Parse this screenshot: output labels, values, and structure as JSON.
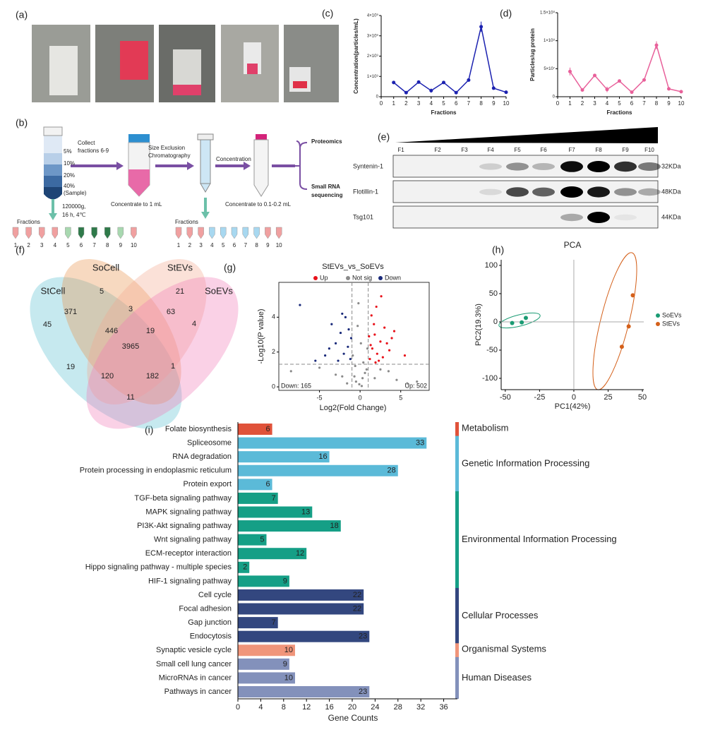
{
  "panel_labels": [
    "(a)",
    "(b)",
    "(c)",
    "(d)",
    "(e)",
    "(f)",
    "(g)",
    "(h)",
    "(i)"
  ],
  "schematic": {
    "gradient": [
      "5%",
      "10%",
      "20%",
      "40%",
      "(Sample)"
    ],
    "centrifuge": [
      "120000g,",
      "16 h, 4℃"
    ],
    "step1": [
      "Collect",
      "fractions 6-9"
    ],
    "step2": [
      "Size Exclusion",
      "Chromatography"
    ],
    "step3": "Concentration",
    "proteomics": "Proteomics",
    "small_rna": [
      "Small RNA",
      "sequencing"
    ],
    "concentrate1": "Concentrate to 1 mL",
    "concentrate2": "Concentrate to 0.1-0.2 mL",
    "fractions_label": "Fractions",
    "fraction_numbers": [
      "1",
      "2",
      "3",
      "4",
      "5",
      "6",
      "7",
      "8",
      "9",
      "10"
    ]
  },
  "blot": {
    "lanes": [
      "F1",
      "F2",
      "F3",
      "F4",
      "F5",
      "F6",
      "F7",
      "F8",
      "F9",
      "F10"
    ],
    "rows": [
      {
        "protein": "Syntenin-1",
        "size": "32KDa"
      },
      {
        "protein": "Flotillin-1",
        "size": "48KDa"
      },
      {
        "protein": "Tsg101",
        "size": "44KDa"
      }
    ]
  },
  "venn": {
    "sets": [
      "StCell",
      "SoCell",
      "StEVs",
      "SoEVs"
    ],
    "counts": [
      5,
      21,
      371,
      3,
      63,
      45,
      446,
      19,
      4,
      3965,
      19,
      120,
      182,
      1,
      11
    ]
  },
  "chart_data": [
    {
      "type": "line",
      "ylabel": "Concentration(particles/mL)",
      "xlabel": "Fractions",
      "color": "#1c22b0",
      "x": [
        1,
        2,
        3,
        4,
        5,
        6,
        7,
        8,
        9,
        10
      ],
      "values": [
        700000000,
        200000000,
        720000000,
        300000000,
        700000000,
        200000000,
        820000000,
        3450000000,
        420000000,
        220000000
      ],
      "errors": [
        80000000,
        20000000,
        30000000,
        100000000,
        30000000,
        20000000,
        30000000,
        250000000,
        20000000,
        20000000
      ],
      "xlim": [
        0,
        10
      ],
      "xticks": [
        0,
        1,
        2,
        3,
        4,
        5,
        6,
        7,
        8,
        9,
        10
      ],
      "ylim": [
        0,
        4000000000
      ],
      "yticks": [
        0,
        {
          "value": 1000000000,
          "label": "1×10⁹"
        },
        {
          "value": 2000000000,
          "label": "2×10⁹"
        },
        {
          "value": 3000000000,
          "label": "3×10⁹"
        },
        {
          "value": 4000000000,
          "label": "4×10⁹"
        }
      ]
    },
    {
      "type": "line",
      "ylabel": "Particles/ug protein",
      "xlabel": "Fractions",
      "color": "#e8609a",
      "x": [
        1,
        2,
        3,
        4,
        5,
        6,
        7,
        8,
        9,
        10
      ],
      "values": [
        45000000,
        12000000,
        38000000,
        13000000,
        28000000,
        8000000,
        30000000,
        92000000,
        14000000,
        9000000
      ],
      "errors": [
        7000000,
        2000000,
        1000000,
        5000000,
        1000000,
        1000000,
        1000000,
        7000000,
        1000000,
        2000000
      ],
      "xlim": [
        0,
        10
      ],
      "xticks": [
        0,
        1,
        2,
        3,
        4,
        5,
        6,
        7,
        8,
        9,
        10
      ],
      "ylim": [
        0,
        150000000
      ],
      "yticks": [
        0,
        {
          "value": 50000000,
          "label": "5×10⁷"
        },
        {
          "value": 100000000,
          "label": "1×10⁸"
        },
        {
          "value": 150000000,
          "label": "1.5×10⁸"
        }
      ]
    },
    {
      "type": "volcano",
      "title": "StEVs_vs_SoEVs",
      "xlabel": "Log2(Fold Change)",
      "ylabel": "-Log10(P value)",
      "down_label": "Down: 165",
      "up_label": "Up: 502",
      "threshold_y": 1.3,
      "threshold_x": [
        -1,
        1
      ],
      "xlim": [
        -10,
        8.5
      ],
      "xticks": [
        -5,
        0,
        5
      ],
      "ylim": [
        -0.2,
        6
      ],
      "yticks": [
        0,
        2,
        4
      ],
      "series": [
        {
          "name": "Up",
          "color": "#e8111a",
          "x": [
            1.2,
            1.5,
            1.8,
            2.1,
            2.5,
            3.0,
            3.6,
            4.2,
            1.4,
            2.0,
            2.8,
            3.3,
            1.1,
            1.7,
            2.3,
            3.9,
            5.5,
            2.6,
            1.9,
            1.3
          ],
          "values": [
            1.6,
            2.2,
            3.0,
            1.9,
            2.6,
            3.4,
            2.1,
            3.2,
            4.1,
            4.6,
            1.7,
            2.5,
            2.9,
            3.6,
            1.5,
            2.8,
            1.8,
            5.2,
            1.4,
            2.4
          ]
        },
        {
          "name": "Not sig",
          "color": "#8a8a8a",
          "x": [
            -0.5,
            0.3,
            0.8,
            -0.9,
            0.1,
            -0.3,
            0.6,
            -0.7,
            0.4,
            -0.2,
            2.5,
            -3.0,
            4.5,
            -5.0,
            -8.5,
            7.0,
            0.9,
            -0.6,
            1.8,
            -1.6,
            0.2,
            -0.1,
            3.5,
            -2.2,
            5.8
          ],
          "values": [
            0.3,
            0.5,
            1.0,
            1.8,
            2.5,
            3.5,
            0.8,
            0.6,
            1.4,
            4.8,
            1.0,
            0.7,
            0.4,
            1.1,
            0.9,
            0.3,
            2.2,
            1.2,
            0.5,
            0.2,
            0.05,
            0.15,
            0.9,
            0.6,
            0.2
          ]
        },
        {
          "name": "Down",
          "color": "#1a2a7a",
          "x": [
            -1.2,
            -1.5,
            -2.0,
            -2.4,
            -3.0,
            -3.5,
            -4.3,
            -1.8,
            -2.7,
            -1.1,
            -5.5,
            -7.4,
            -3.8,
            -2.2,
            -1.4
          ],
          "values": [
            1.6,
            2.3,
            1.9,
            3.1,
            2.5,
            3.6,
            1.8,
            4.0,
            1.5,
            2.8,
            1.5,
            4.7,
            2.2,
            4.2,
            3.3
          ]
        }
      ]
    },
    {
      "type": "scatter",
      "title": "PCA",
      "xlabel": "PC1(42%)",
      "ylabel": "PC2(19.3%)",
      "xlim": [
        -53,
        51
      ],
      "xticks": [
        -50,
        -25,
        0,
        25,
        50
      ],
      "ylim": [
        -120,
        110
      ],
      "yticks": [
        100,
        50,
        0,
        -50,
        -100
      ],
      "series": [
        {
          "name": "SoEVs",
          "color": "#1a9b73",
          "x": [
            -45,
            -38,
            -35
          ],
          "values": [
            -2,
            -1,
            7
          ]
        },
        {
          "name": "StEVs",
          "color": "#d4601a",
          "x": [
            43,
            40,
            35
          ],
          "values": [
            47,
            -8,
            -44
          ]
        }
      ]
    },
    {
      "type": "hbar",
      "xlabel": "Gene Counts",
      "xlim": [
        0,
        38.4
      ],
      "xticks": [
        0,
        4,
        8,
        12,
        16,
        20,
        24,
        28,
        32,
        36
      ],
      "series": [
        {
          "name": "Metabolism",
          "color": "#e0523a",
          "categories": [
            "Folate biosynthesis"
          ],
          "values": [
            6
          ]
        },
        {
          "name": "Genetic Information Processing",
          "color": "#5bbad8",
          "categories": [
            "Spliceosome",
            "RNA degradation",
            "Protein processing in endoplasmic reticulum",
            "Protein export"
          ],
          "values": [
            33,
            16,
            28,
            6
          ]
        },
        {
          "name": "Environmental Information Processing",
          "color": "#159f86",
          "categories": [
            "TGF-beta signaling pathway",
            "MAPK signaling pathway",
            "PI3K-Akt signaling pathway",
            "Wnt signaling pathway",
            "ECM-receptor interaction",
            "Hippo signaling pathway - multiple species",
            "HIF-1 signaling pathway"
          ],
          "values": [
            7,
            13,
            18,
            5,
            12,
            2,
            9
          ]
        },
        {
          "name": "Cellular Processes",
          "color": "#33477f",
          "categories": [
            "Cell cycle",
            "Focal adhesion",
            "Gap junction",
            "Endocytosis"
          ],
          "values": [
            22,
            22,
            7,
            23
          ]
        },
        {
          "name": "Organismal Systems",
          "color": "#f0957a",
          "categories": [
            "Synaptic vesicle cycle"
          ],
          "values": [
            10
          ]
        },
        {
          "name": "Human Diseases",
          "color": "#8391bb",
          "categories": [
            "Small cell lung cancer",
            "MicroRNAs in cancer",
            "Pathways in cancer"
          ],
          "values": [
            9,
            10,
            23
          ]
        }
      ]
    }
  ]
}
